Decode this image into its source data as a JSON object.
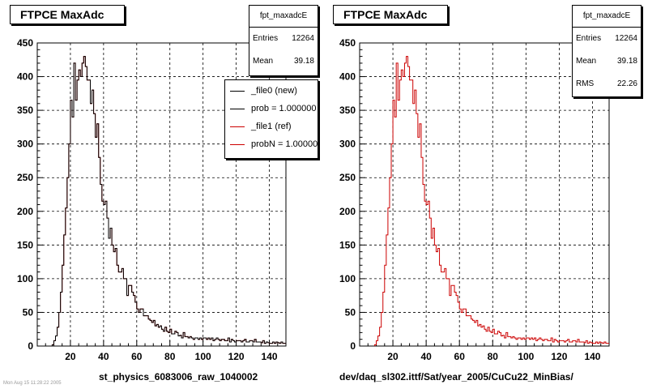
{
  "panels": [
    {
      "title": "FTPCE MaxAdc",
      "stats": {
        "name": "fpt_maxadcE",
        "rows": [
          {
            "label": "Entries",
            "value": "12264"
          },
          {
            "label": "Mean",
            "value": "39.18"
          }
        ]
      },
      "legend": [
        {
          "label": "_file0 (new)",
          "color": "#000000"
        },
        {
          "label": "prob = 1.000000",
          "color": "#000000"
        },
        {
          "label": "_file1 (ref)",
          "color": "#cc0000"
        },
        {
          "label": "probN = 1.000000",
          "color": "#cc0000"
        }
      ],
      "run_label": "st_physics_6083006_raw_1040002"
    },
    {
      "title": "FTPCE MaxAdc",
      "stats": {
        "name": "fpt_maxadcE",
        "rows": [
          {
            "label": "Entries",
            "value": "12264"
          },
          {
            "label": "Mean",
            "value": "39.18"
          },
          {
            "label": "RMS",
            "value": "22.26"
          }
        ]
      },
      "run_label": "dev/daq_sl302.ittf/Sat/year_2005/CuCu22_MinBias/"
    }
  ],
  "footer_small_text": "Mon Aug 15 11:28:22 2005",
  "chart_data": [
    {
      "type": "histogram",
      "title": "FTPCE MaxAdc",
      "xlim": [
        0,
        150
      ],
      "ylim": [
        0,
        450
      ],
      "xticks": [
        20,
        40,
        60,
        80,
        100,
        120,
        140
      ],
      "yticks": [
        0,
        50,
        100,
        150,
        200,
        250,
        300,
        350,
        400,
        450
      ],
      "grid": true,
      "bin_width": 1,
      "x_start": 9,
      "series": [
        {
          "name": "_file1 (ref)",
          "color": "#cc0000",
          "values": [
            2,
            8,
            15,
            28,
            50,
            80,
            120,
            165,
            205,
            250,
            300,
            365,
            340,
            420,
            365,
            395,
            410,
            400,
            420,
            430,
            415,
            395,
            395,
            360,
            380,
            345,
            310,
            330,
            280,
            240,
            215,
            210,
            215,
            190,
            160,
            175,
            150,
            140,
            145,
            120,
            110,
            110,
            115,
            100,
            100,
            75,
            90,
            90,
            80,
            75,
            65,
            55,
            50,
            55,
            55,
            45,
            45,
            45,
            40,
            38,
            35,
            38,
            30,
            32,
            28,
            30,
            25,
            22,
            28,
            22,
            20,
            25,
            18,
            18,
            22,
            20,
            15,
            16,
            12,
            20,
            14,
            14,
            12,
            14,
            12,
            10,
            12,
            12,
            10,
            12,
            10,
            12,
            12,
            10,
            12,
            10,
            12,
            8,
            10,
            12,
            10,
            8,
            10,
            10,
            8,
            8,
            12,
            6,
            10,
            8,
            6,
            8,
            8,
            8,
            6,
            8,
            10,
            6,
            6,
            8,
            8,
            6,
            10,
            6,
            6,
            6,
            5,
            8,
            4,
            6,
            5,
            4,
            4,
            6,
            4,
            6,
            5,
            4,
            6,
            4,
            4
          ]
        },
        {
          "name": "_file0 (new)",
          "color": "#000000",
          "values": [
            2,
            8,
            15,
            28,
            50,
            80,
            120,
            165,
            205,
            250,
            300,
            365,
            340,
            420,
            365,
            395,
            410,
            400,
            420,
            430,
            415,
            395,
            395,
            360,
            380,
            345,
            310,
            330,
            280,
            240,
            215,
            210,
            215,
            190,
            160,
            175,
            150,
            140,
            145,
            120,
            110,
            110,
            115,
            100,
            100,
            75,
            90,
            90,
            80,
            75,
            65,
            55,
            50,
            55,
            55,
            45,
            45,
            45,
            40,
            38,
            35,
            38,
            30,
            32,
            28,
            30,
            25,
            22,
            28,
            22,
            20,
            25,
            18,
            18,
            22,
            20,
            15,
            16,
            12,
            20,
            14,
            14,
            12,
            14,
            12,
            10,
            12,
            12,
            10,
            12,
            10,
            12,
            12,
            10,
            12,
            10,
            12,
            8,
            10,
            12,
            10,
            8,
            10,
            10,
            8,
            8,
            12,
            6,
            10,
            8,
            6,
            8,
            8,
            8,
            6,
            8,
            10,
            6,
            6,
            8,
            8,
            6,
            10,
            6,
            6,
            6,
            5,
            8,
            4,
            6,
            5,
            4,
            4,
            6,
            4,
            6,
            5,
            4,
            6,
            4,
            4
          ]
        }
      ]
    },
    {
      "type": "histogram",
      "title": "FTPCE MaxAdc",
      "xlim": [
        0,
        150
      ],
      "ylim": [
        0,
        450
      ],
      "xticks": [
        20,
        40,
        60,
        80,
        100,
        120,
        140
      ],
      "yticks": [
        0,
        50,
        100,
        150,
        200,
        250,
        300,
        350,
        400,
        450
      ],
      "grid": true,
      "bin_width": 1,
      "x_start": 9,
      "series": [
        {
          "name": "fpt_maxadcE",
          "color": "#cc0000",
          "values": [
            2,
            8,
            15,
            28,
            50,
            80,
            120,
            165,
            205,
            250,
            300,
            365,
            340,
            420,
            365,
            395,
            410,
            400,
            420,
            430,
            415,
            395,
            395,
            360,
            380,
            345,
            310,
            330,
            280,
            240,
            215,
            210,
            215,
            190,
            160,
            175,
            150,
            140,
            145,
            120,
            110,
            110,
            115,
            100,
            100,
            75,
            90,
            90,
            80,
            75,
            65,
            55,
            50,
            55,
            55,
            45,
            45,
            45,
            40,
            38,
            35,
            38,
            30,
            32,
            28,
            30,
            25,
            22,
            28,
            22,
            20,
            25,
            18,
            18,
            22,
            20,
            15,
            16,
            12,
            20,
            14,
            14,
            12,
            14,
            12,
            10,
            12,
            12,
            10,
            12,
            10,
            12,
            12,
            10,
            12,
            10,
            12,
            8,
            10,
            12,
            10,
            8,
            10,
            10,
            8,
            8,
            12,
            6,
            10,
            8,
            6,
            8,
            8,
            8,
            6,
            8,
            10,
            6,
            6,
            8,
            8,
            6,
            10,
            6,
            6,
            6,
            5,
            8,
            4,
            6,
            5,
            4,
            4,
            6,
            4,
            6,
            5,
            4,
            6,
            4,
            4
          ]
        }
      ]
    }
  ]
}
